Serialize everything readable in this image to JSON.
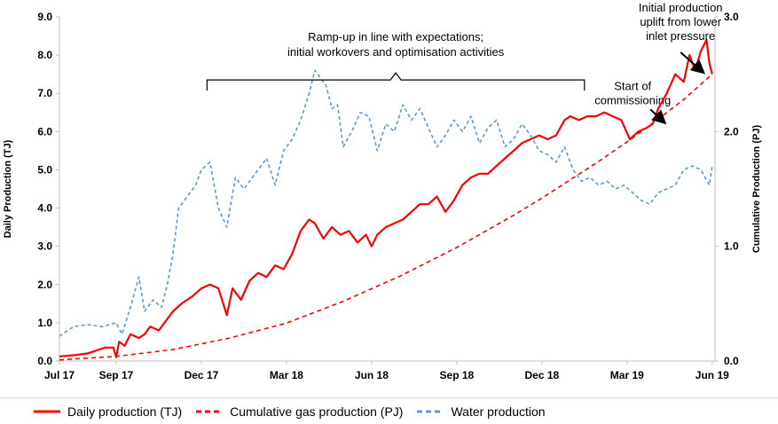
{
  "chart_data": {
    "type": "line",
    "x_tick_labels": [
      "Jul 17",
      "Sep 17",
      "Dec 17",
      "Mar 18",
      "Jun 18",
      "Sep 18",
      "Dec 18",
      "Mar 19",
      "Jun 19"
    ],
    "x_tick_months": [
      0,
      2,
      5,
      8,
      11,
      14,
      17,
      20,
      23
    ],
    "xlim_months": [
      0,
      23.1
    ],
    "y_left": {
      "label": "Daily Production (TJ)",
      "ticks": [
        "0.0",
        "1.0",
        "2.0",
        "3.0",
        "4.0",
        "5.0",
        "6.0",
        "7.0",
        "8.0",
        "9.0"
      ],
      "ylim": [
        0,
        9
      ]
    },
    "y_right": {
      "label": "Cumulative Production (PJ)",
      "ticks": [
        "0.0",
        "1.0",
        "2.0",
        "3.0"
      ],
      "ylim": [
        0,
        3
      ]
    },
    "grid": false,
    "legend_position": "bottom",
    "series": [
      {
        "name": "Daily production (TJ)",
        "axis": "left",
        "color": "#ff0000",
        "style": "solid",
        "x": [
          0,
          0.5,
          1,
          1.4,
          1.6,
          1.9,
          2.0,
          2.1,
          2.3,
          2.5,
          2.8,
          3.0,
          3.2,
          3.5,
          3.8,
          4.0,
          4.3,
          4.5,
          4.7,
          5.0,
          5.3,
          5.6,
          5.9,
          6.1,
          6.3,
          6.4,
          6.7,
          7.0,
          7.3,
          7.6,
          7.9,
          8.2,
          8.5,
          8.8,
          9.0,
          9.3,
          9.6,
          9.9,
          10.2,
          10.5,
          10.8,
          11.0,
          11.2,
          11.5,
          11.8,
          12.1,
          12.4,
          12.7,
          13.0,
          13.3,
          13.6,
          13.9,
          14.2,
          14.5,
          14.8,
          15.1,
          15.4,
          15.7,
          16.0,
          16.3,
          16.6,
          16.9,
          17.2,
          17.5,
          17.8,
          18.0,
          18.3,
          18.6,
          18.9,
          19.2,
          19.5,
          19.8,
          20.1,
          20.4,
          20.7,
          20.9,
          21.1,
          21.4,
          21.7,
          22.0,
          22.2,
          22.4,
          22.6,
          22.8,
          22.9,
          23.0
        ],
        "y": [
          0.12,
          0.15,
          0.2,
          0.3,
          0.35,
          0.35,
          0.1,
          0.5,
          0.4,
          0.7,
          0.6,
          0.7,
          0.9,
          0.8,
          1.1,
          1.3,
          1.5,
          1.6,
          1.7,
          1.9,
          2.0,
          1.9,
          1.2,
          1.9,
          1.7,
          1.6,
          2.1,
          2.3,
          2.2,
          2.5,
          2.4,
          2.8,
          3.4,
          3.7,
          3.6,
          3.2,
          3.5,
          3.3,
          3.4,
          3.1,
          3.3,
          3.0,
          3.3,
          3.5,
          3.6,
          3.7,
          3.9,
          4.1,
          4.1,
          4.3,
          3.9,
          4.2,
          4.6,
          4.8,
          4.9,
          4.9,
          5.1,
          5.3,
          5.5,
          5.7,
          5.8,
          5.9,
          5.8,
          5.9,
          6.3,
          6.4,
          6.3,
          6.4,
          6.4,
          6.5,
          6.4,
          6.3,
          5.8,
          6.0,
          6.1,
          6.2,
          6.6,
          7.0,
          7.5,
          7.3,
          8.0,
          7.6,
          8.1,
          8.4,
          7.8,
          7.5
        ],
        "name_color_role": "legend"
      },
      {
        "name": "Cumulative gas production (PJ)",
        "axis": "right",
        "color": "#ff0000",
        "style": "dashed",
        "x": [
          0,
          2,
          4,
          6,
          8,
          10,
          12,
          14,
          16,
          17,
          18,
          19,
          20,
          21,
          22,
          23
        ],
        "y": [
          0.01,
          0.04,
          0.1,
          0.2,
          0.33,
          0.52,
          0.74,
          0.99,
          1.27,
          1.42,
          1.58,
          1.74,
          1.91,
          2.09,
          2.28,
          2.5
        ]
      },
      {
        "name": "Water production",
        "axis": "left",
        "color": "#5b9bd5",
        "style": "dashed",
        "x": [
          0,
          0.5,
          1,
          1.5,
          2.0,
          2.2,
          2.5,
          2.8,
          3.0,
          3.3,
          3.6,
          3.8,
          4.0,
          4.2,
          4.5,
          4.8,
          5.0,
          5.3,
          5.6,
          5.9,
          6.2,
          6.5,
          6.8,
          7.0,
          7.3,
          7.6,
          7.9,
          8.2,
          8.5,
          8.8,
          9.0,
          9.2,
          9.4,
          9.6,
          9.8,
          10.0,
          10.3,
          10.6,
          10.9,
          11.2,
          11.5,
          11.8,
          12.1,
          12.4,
          12.7,
          13.0,
          13.3,
          13.6,
          13.9,
          14.2,
          14.5,
          14.8,
          15.1,
          15.4,
          15.7,
          16.0,
          16.3,
          16.6,
          16.9,
          17.2,
          17.5,
          17.8,
          18.1,
          18.4,
          18.7,
          19.0,
          19.3,
          19.6,
          19.9,
          20.2,
          20.5,
          20.8,
          21.1,
          21.4,
          21.7,
          22.0,
          22.3,
          22.6,
          22.9,
          23.0
        ],
        "y": [
          0.65,
          0.9,
          0.95,
          0.9,
          1.0,
          0.7,
          1.4,
          2.2,
          1.3,
          1.6,
          1.4,
          2.0,
          2.8,
          4.0,
          4.3,
          4.6,
          5.0,
          5.2,
          4.0,
          3.5,
          4.8,
          4.5,
          4.8,
          5.0,
          5.3,
          4.6,
          5.5,
          5.8,
          6.3,
          7.0,
          7.6,
          7.4,
          7.2,
          6.6,
          6.7,
          5.6,
          6.0,
          6.5,
          6.4,
          5.5,
          6.2,
          6.0,
          6.7,
          6.3,
          6.6,
          6.1,
          5.6,
          5.9,
          6.3,
          6.0,
          6.4,
          5.7,
          6.1,
          6.3,
          5.6,
          5.8,
          6.2,
          5.9,
          5.5,
          5.4,
          5.2,
          5.6,
          5.0,
          4.7,
          4.8,
          4.6,
          4.7,
          4.5,
          4.6,
          4.4,
          4.2,
          4.1,
          4.4,
          4.5,
          4.6,
          5.0,
          5.1,
          5.0,
          4.6,
          5.1
        ]
      }
    ],
    "annotations": [
      {
        "text": [
          "Ramp-up in line with expectations;",
          "initial workovers and optimisation activities"
        ],
        "kind": "brace",
        "x_start": 5.2,
        "x_end": 18.5,
        "y": 7.35
      },
      {
        "text": [
          "Start of",
          "commissioning"
        ],
        "kind": "arrow",
        "from_month": 20.2,
        "from_y": 6.95,
        "to_month": 21.3,
        "to_y": 6.9
      },
      {
        "text": [
          "Initial production",
          "uplift from lower",
          "inlet pressure"
        ],
        "kind": "arrow",
        "from_month": 22.2,
        "from_y": 7.6,
        "to_month": 22.6,
        "to_y": 7.55
      }
    ]
  }
}
